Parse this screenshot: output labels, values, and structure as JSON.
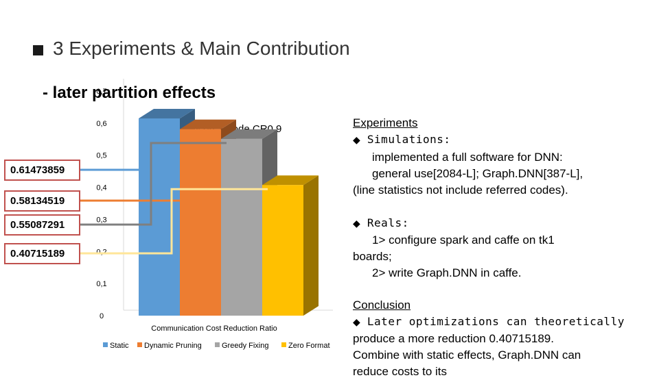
{
  "slide": {
    "title": "3 Experiments & Main Contribution",
    "subtitle": "- later partition effects"
  },
  "value_boxes": [
    "0.61473859",
    "0.58134519",
    "0.55087291",
    "0.40715189"
  ],
  "right_panel": {
    "experiments_heading": "Experiments",
    "bullet_glyph": "◆",
    "simulations_label": " Simulations:",
    "sim_line1": "implemented a full software for DNN:",
    "sim_line2": "general use[2084-L];  Graph.DNN[387-L],",
    "sim_line3": "(line statistics not include referred codes).",
    "reals_label": " Reals:",
    "reals_line1": "1> configure spark and caffe on tk1",
    "reals_line2": "boards;",
    "reals_line3": "2> write Graph.DNN in caffe.",
    "conclusion_heading": "Conclusion",
    "conclusion_bullet": " Later optimizations can theoretically",
    "conclusion_line2": "produce a more reduction 0.40715189.",
    "conclusion_line3": "Combine with static effects, Graph.DNN can",
    "conclusion_line4": "reduce costs to its"
  },
  "chart_data": {
    "type": "bar",
    "title": "Graph.DNN on 2-node CR0.9",
    "xlabel": "Communication Cost Reduction Ratio",
    "ylabel": "",
    "ylim": [
      0,
      0.7
    ],
    "yticks": [
      "0",
      "0,1",
      "0,2",
      "0,3",
      "0,4",
      "0,5",
      "0,6",
      "0,7"
    ],
    "legend_position": "bottom",
    "grid": false,
    "series": [
      {
        "name": "Static",
        "value": 0.61473859,
        "color": "#5b9bd5"
      },
      {
        "name": "Dynamic Pruning",
        "value": 0.58134519,
        "color": "#ed7d31"
      },
      {
        "name": "Greedy Fixing",
        "value": 0.55087291,
        "color": "#a5a5a5"
      },
      {
        "name": "Zero Format",
        "value": 0.40715189,
        "color": "#ffc000"
      }
    ]
  },
  "connector_colors": [
    "#5b9bd5",
    "#ed7d31",
    "#7f7f7f",
    "#ffe699"
  ]
}
